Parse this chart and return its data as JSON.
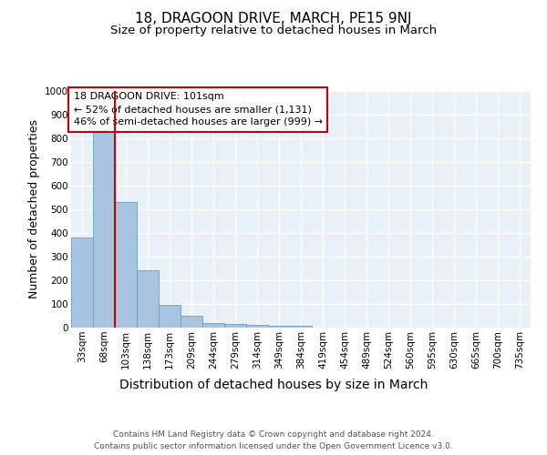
{
  "title": "18, DRAGOON DRIVE, MARCH, PE15 9NJ",
  "subtitle": "Size of property relative to detached houses in March",
  "xlabel": "Distribution of detached houses by size in March",
  "ylabel": "Number of detached properties",
  "bar_color": "#a8c4e0",
  "bar_edge_color": "#6a9fc0",
  "background_color": "#e8f0f8",
  "grid_color": "#ffffff",
  "categories": [
    "33sqm",
    "68sqm",
    "103sqm",
    "138sqm",
    "173sqm",
    "209sqm",
    "244sqm",
    "279sqm",
    "314sqm",
    "349sqm",
    "384sqm",
    "419sqm",
    "454sqm",
    "489sqm",
    "524sqm",
    "560sqm",
    "595sqm",
    "630sqm",
    "665sqm",
    "700sqm",
    "735sqm"
  ],
  "values": [
    380,
    830,
    530,
    243,
    95,
    50,
    20,
    15,
    10,
    8,
    8,
    0,
    0,
    0,
    0,
    0,
    0,
    0,
    0,
    0,
    0
  ],
  "property_line_index": 2,
  "property_line_color": "#cc0000",
  "ylim": [
    0,
    1000
  ],
  "annotation_text": "18 DRAGOON DRIVE: 101sqm\n← 52% of detached houses are smaller (1,131)\n46% of semi-detached houses are larger (999) →",
  "annotation_box_color": "#cc0000",
  "footnote": "Contains HM Land Registry data © Crown copyright and database right 2024.\nContains public sector information licensed under the Open Government Licence v3.0.",
  "title_fontsize": 11,
  "subtitle_fontsize": 9.5,
  "xlabel_fontsize": 10,
  "ylabel_fontsize": 9,
  "tick_fontsize": 7.5,
  "annotation_fontsize": 8,
  "footnote_fontsize": 6.5
}
